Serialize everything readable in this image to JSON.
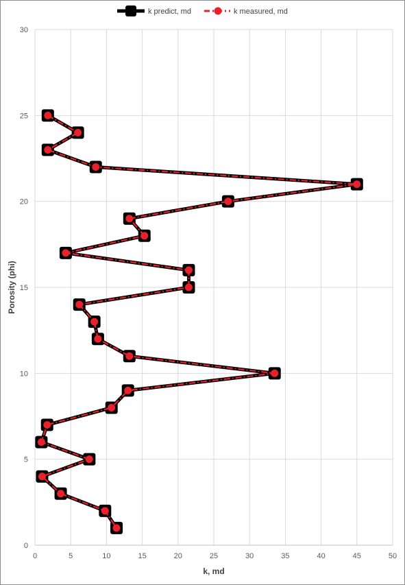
{
  "chart_data": {
    "type": "line",
    "title": "",
    "xlabel": "k, md",
    "ylabel": "Porosity (phi)",
    "xlim": [
      0,
      50
    ],
    "ylim": [
      0,
      30
    ],
    "xticks": [
      "0",
      "5",
      "10",
      "15",
      "20",
      "25",
      "30",
      "35",
      "40",
      "45",
      "50"
    ],
    "yticks": [
      "0",
      "5",
      "10",
      "15",
      "20",
      "25",
      "30"
    ],
    "grid": "vertical and horizontal major gridlines",
    "legend_position": "top",
    "series": [
      {
        "name": "k predict, md",
        "color": "#000000",
        "marker": "square",
        "line_style": "solid",
        "points": [
          {
            "k": 1.8,
            "phi": 25
          },
          {
            "k": 6.0,
            "phi": 24
          },
          {
            "k": 1.8,
            "phi": 23
          },
          {
            "k": 8.5,
            "phi": 22
          },
          {
            "k": 45.0,
            "phi": 21
          },
          {
            "k": 27.0,
            "phi": 20
          },
          {
            "k": 13.2,
            "phi": 19
          },
          {
            "k": 15.3,
            "phi": 18
          },
          {
            "k": 4.3,
            "phi": 17
          },
          {
            "k": 21.5,
            "phi": 16
          },
          {
            "k": 21.5,
            "phi": 15
          },
          {
            "k": 6.2,
            "phi": 14
          },
          {
            "k": 8.3,
            "phi": 13
          },
          {
            "k": 8.8,
            "phi": 12
          },
          {
            "k": 13.2,
            "phi": 11
          },
          {
            "k": 33.5,
            "phi": 10
          },
          {
            "k": 13.0,
            "phi": 9
          },
          {
            "k": 10.7,
            "phi": 8
          },
          {
            "k": 1.7,
            "phi": 7
          },
          {
            "k": 0.9,
            "phi": 6
          },
          {
            "k": 7.6,
            "phi": 5
          },
          {
            "k": 1.0,
            "phi": 4
          },
          {
            "k": 3.6,
            "phi": 3
          },
          {
            "k": 9.8,
            "phi": 2
          },
          {
            "k": 11.4,
            "phi": 1
          }
        ]
      },
      {
        "name": "k measured, md",
        "color": "#e8212b",
        "marker": "circle",
        "line_style": "dashed",
        "points": [
          {
            "k": 1.8,
            "phi": 25
          },
          {
            "k": 6.0,
            "phi": 24
          },
          {
            "k": 1.8,
            "phi": 23
          },
          {
            "k": 8.5,
            "phi": 22
          },
          {
            "k": 45.0,
            "phi": 21
          },
          {
            "k": 27.0,
            "phi": 20
          },
          {
            "k": 13.2,
            "phi": 19
          },
          {
            "k": 15.3,
            "phi": 18
          },
          {
            "k": 4.3,
            "phi": 17
          },
          {
            "k": 21.5,
            "phi": 16
          },
          {
            "k": 21.5,
            "phi": 15
          },
          {
            "k": 6.2,
            "phi": 14
          },
          {
            "k": 8.3,
            "phi": 13
          },
          {
            "k": 8.8,
            "phi": 12
          },
          {
            "k": 13.2,
            "phi": 11
          },
          {
            "k": 33.5,
            "phi": 10
          },
          {
            "k": 13.0,
            "phi": 9
          },
          {
            "k": 10.7,
            "phi": 8
          },
          {
            "k": 1.7,
            "phi": 7
          },
          {
            "k": 0.9,
            "phi": 6
          },
          {
            "k": 7.6,
            "phi": 5
          },
          {
            "k": 1.0,
            "phi": 4
          },
          {
            "k": 3.6,
            "phi": 3
          },
          {
            "k": 9.8,
            "phi": 2
          },
          {
            "k": 11.4,
            "phi": 1
          }
        ]
      }
    ]
  }
}
